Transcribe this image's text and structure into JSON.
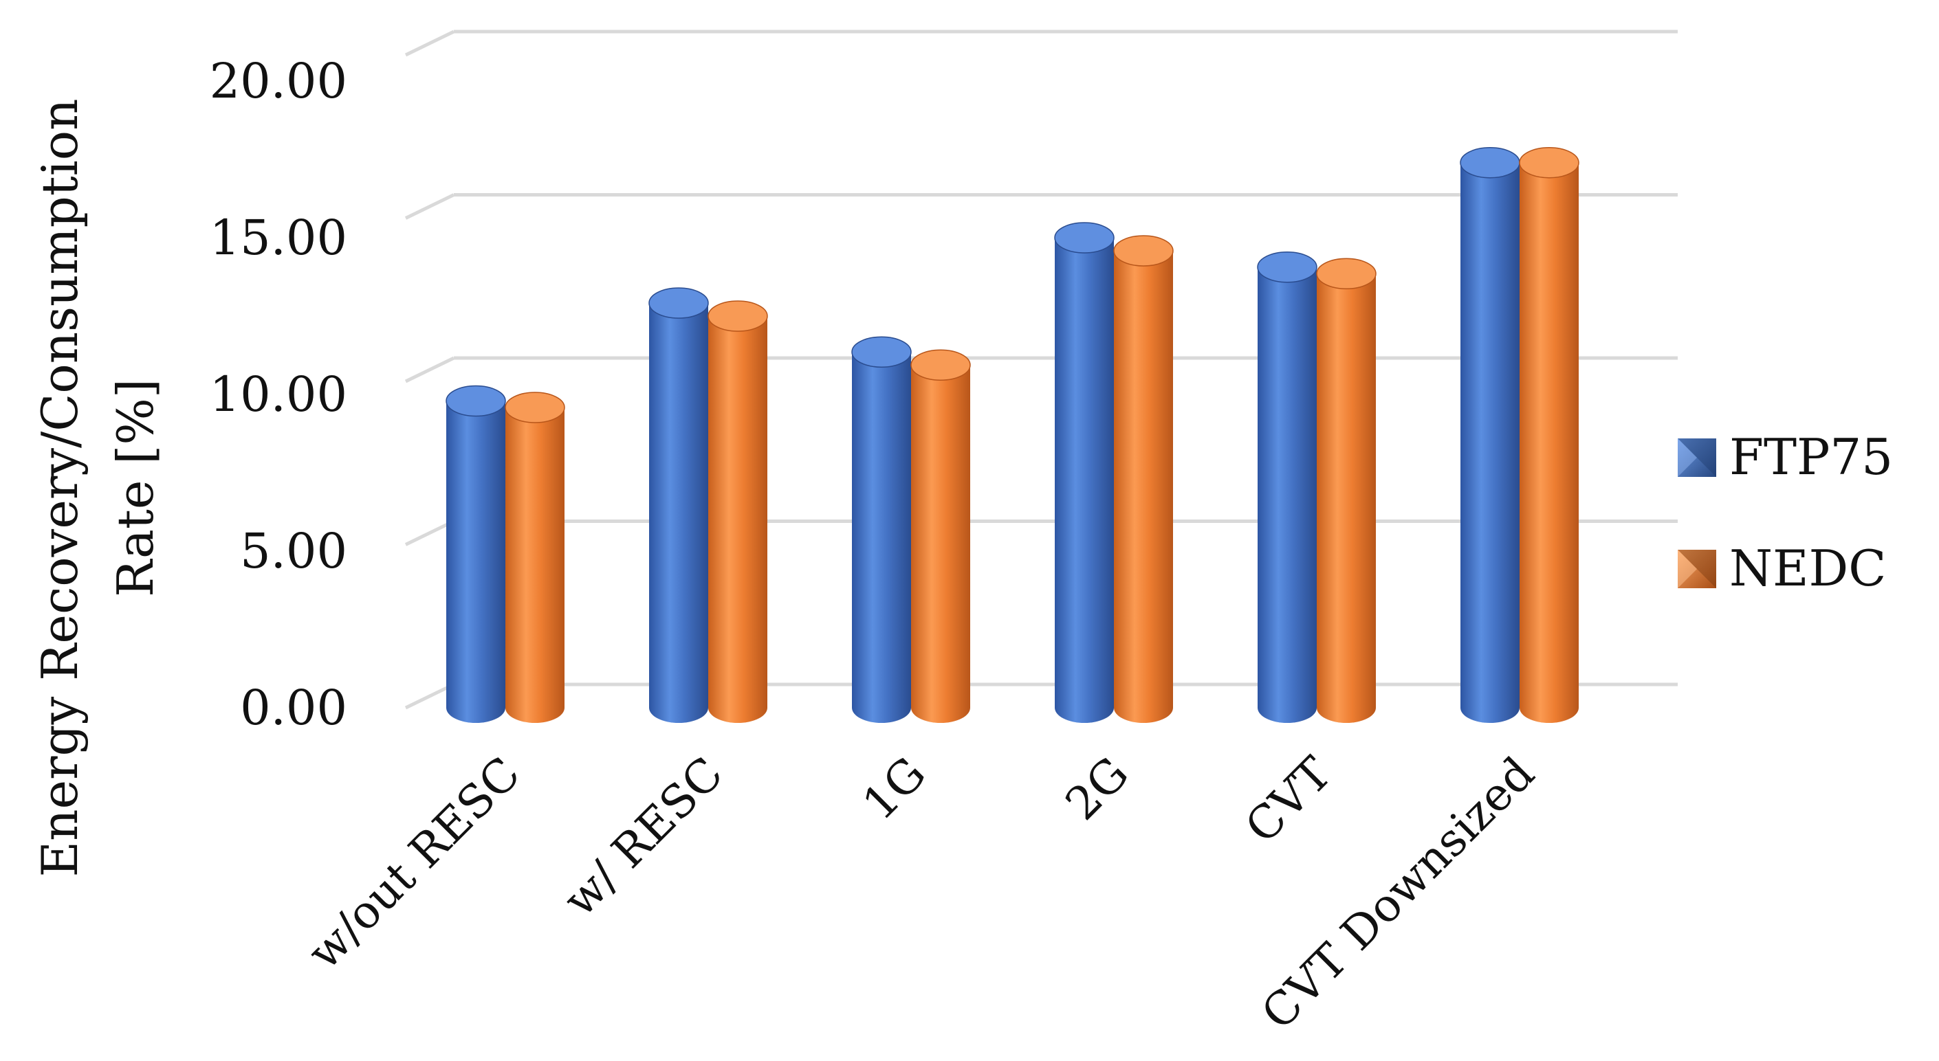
{
  "chart_data": {
    "type": "bar",
    "style": "3d-cylinder",
    "title": "",
    "ylabel_lines": [
      "Energy Recovery/Consumption",
      "Rate [%]"
    ],
    "xlabel": "",
    "categories": [
      "w/out RESC",
      "w/ RESC",
      "1G",
      "2G",
      "CVT",
      "CVT Downsized"
    ],
    "series": [
      {
        "name": "FTP75",
        "values": [
          9.4,
          12.4,
          10.9,
          14.4,
          13.5,
          16.7
        ]
      },
      {
        "name": "NEDC",
        "values": [
          9.2,
          12.0,
          10.5,
          14.0,
          13.3,
          16.7
        ]
      }
    ],
    "ylim": [
      0,
      20
    ],
    "yticks": [
      "0.00",
      "5.00",
      "10.00",
      "15.00",
      "20.00"
    ],
    "grid": true,
    "legend_position": "right",
    "colors": {
      "FTP75": "#4472C4",
      "NEDC": "#ED7D31",
      "grid": "#d9d9d9"
    }
  }
}
